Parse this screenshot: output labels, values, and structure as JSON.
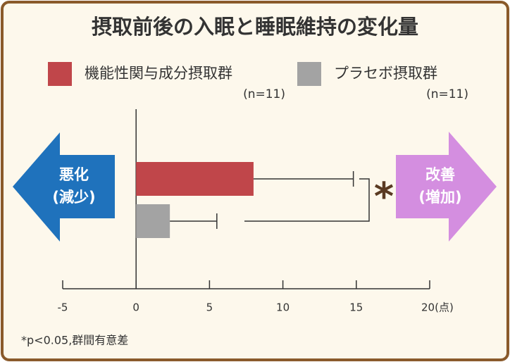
{
  "chart_data": {
    "type": "bar",
    "orientation": "horizontal",
    "title": "摂取前後の入眠と睡眠維持の変化量",
    "series": [
      {
        "name": "機能性関与成分摂取群",
        "sample_label": "(n=11)",
        "color": "#c0464a",
        "values": [
          8.0
        ],
        "errors": [
          6.8
        ]
      },
      {
        "name": "プラセボ摂取群",
        "sample_label": "(n=11)",
        "color": "#a3a3a3",
        "values": [
          2.3
        ],
        "errors": [
          3.2
        ]
      }
    ],
    "xlim": [
      -5,
      20
    ],
    "xticks": [
      -5,
      0,
      5,
      10,
      15,
      {
        "value": 20,
        "label": "20(点)"
      }
    ],
    "significance_marker": "*",
    "left_arrow": {
      "line1": "悪化",
      "line2": "(減少)",
      "color": "#1f72bc"
    },
    "right_arrow": {
      "line1": "改善",
      "line2": "(増加)",
      "color": "#d48ee0"
    },
    "footnote": "*p<0.05,群間有意差"
  }
}
